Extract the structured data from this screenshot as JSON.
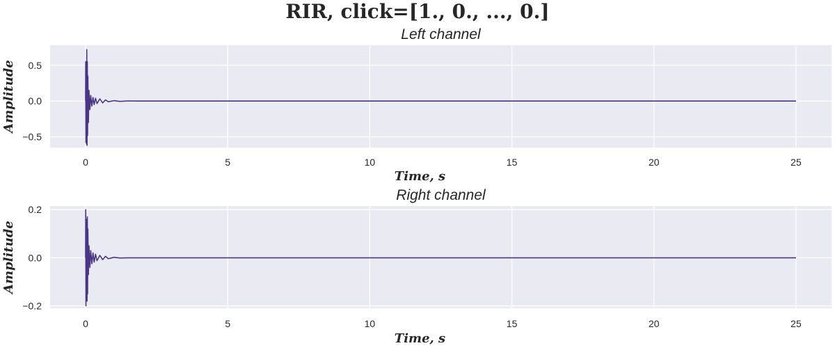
{
  "figure_title": "RIR, click=[1., 0., ..., 0.]",
  "colors": {
    "background": "#eaeaf2",
    "grid": "#ffffff",
    "line": "#483586",
    "text": "#262626"
  },
  "chart_data": [
    {
      "type": "line",
      "title": "Left channel",
      "xlabel": "Time, s",
      "ylabel": "Amplitude",
      "xlim": [
        -1.25,
        26.25
      ],
      "ylim": [
        -0.65,
        0.78
      ],
      "xticks": [
        0,
        5,
        10,
        15,
        20,
        25
      ],
      "xtick_labels": [
        "0",
        "5",
        "10",
        "15",
        "20",
        "25"
      ],
      "yticks": [
        -0.5,
        0.0,
        0.5
      ],
      "ytick_labels": [
        "−0.5",
        "0.0",
        "0.5"
      ],
      "grid": true,
      "series": [
        {
          "x": [
            0,
            0.005,
            0.01,
            0.02,
            0.03,
            0.04,
            0.05,
            0.06,
            0.07,
            0.08,
            0.1,
            0.12,
            0.15,
            0.18,
            0.22,
            0.26,
            0.3,
            0.35,
            0.4,
            0.5,
            0.6,
            0.7,
            0.8,
            1.0,
            1.2,
            1.5,
            1.8,
            2.5,
            5,
            10,
            15,
            20,
            25
          ],
          "y": [
            0,
            0.55,
            -0.58,
            0.45,
            -0.6,
            0.72,
            -0.62,
            0.55,
            -0.48,
            0.35,
            -0.3,
            0.15,
            -0.12,
            0.08,
            -0.07,
            0.05,
            -0.05,
            0.04,
            -0.035,
            0.03,
            -0.025,
            0.015,
            -0.01,
            0.006,
            -0.005,
            0.002,
            0,
            0,
            0,
            0,
            0,
            0,
            0
          ]
        }
      ]
    },
    {
      "type": "line",
      "title": "Right channel",
      "xlabel": "Time, s",
      "ylabel": "Amplitude",
      "xlim": [
        -1.25,
        26.25
      ],
      "ylim": [
        -0.21,
        0.215
      ],
      "xticks": [
        0,
        5,
        10,
        15,
        20,
        25
      ],
      "xtick_labels": [
        "0",
        "5",
        "10",
        "15",
        "20",
        "25"
      ],
      "yticks": [
        -0.2,
        0.0,
        0.2
      ],
      "ytick_labels": [
        "−0.2",
        "0.0",
        "0.2"
      ],
      "grid": true,
      "series": [
        {
          "x": [
            0,
            0.005,
            0.01,
            0.02,
            0.03,
            0.04,
            0.05,
            0.06,
            0.07,
            0.08,
            0.1,
            0.12,
            0.15,
            0.18,
            0.22,
            0.26,
            0.3,
            0.35,
            0.4,
            0.5,
            0.6,
            0.7,
            0.8,
            1.0,
            1.2,
            1.5,
            2.5,
            5,
            10,
            15,
            20,
            25
          ],
          "y": [
            0,
            0.2,
            -0.2,
            0.15,
            -0.17,
            0.16,
            -0.18,
            0.17,
            -0.15,
            0.12,
            -0.07,
            0.05,
            -0.04,
            0.03,
            -0.025,
            0.02,
            -0.018,
            0.015,
            -0.012,
            0.01,
            -0.008,
            0.006,
            -0.004,
            0.002,
            -0.001,
            0,
            0,
            0,
            0,
            0,
            0,
            0
          ]
        }
      ]
    }
  ]
}
